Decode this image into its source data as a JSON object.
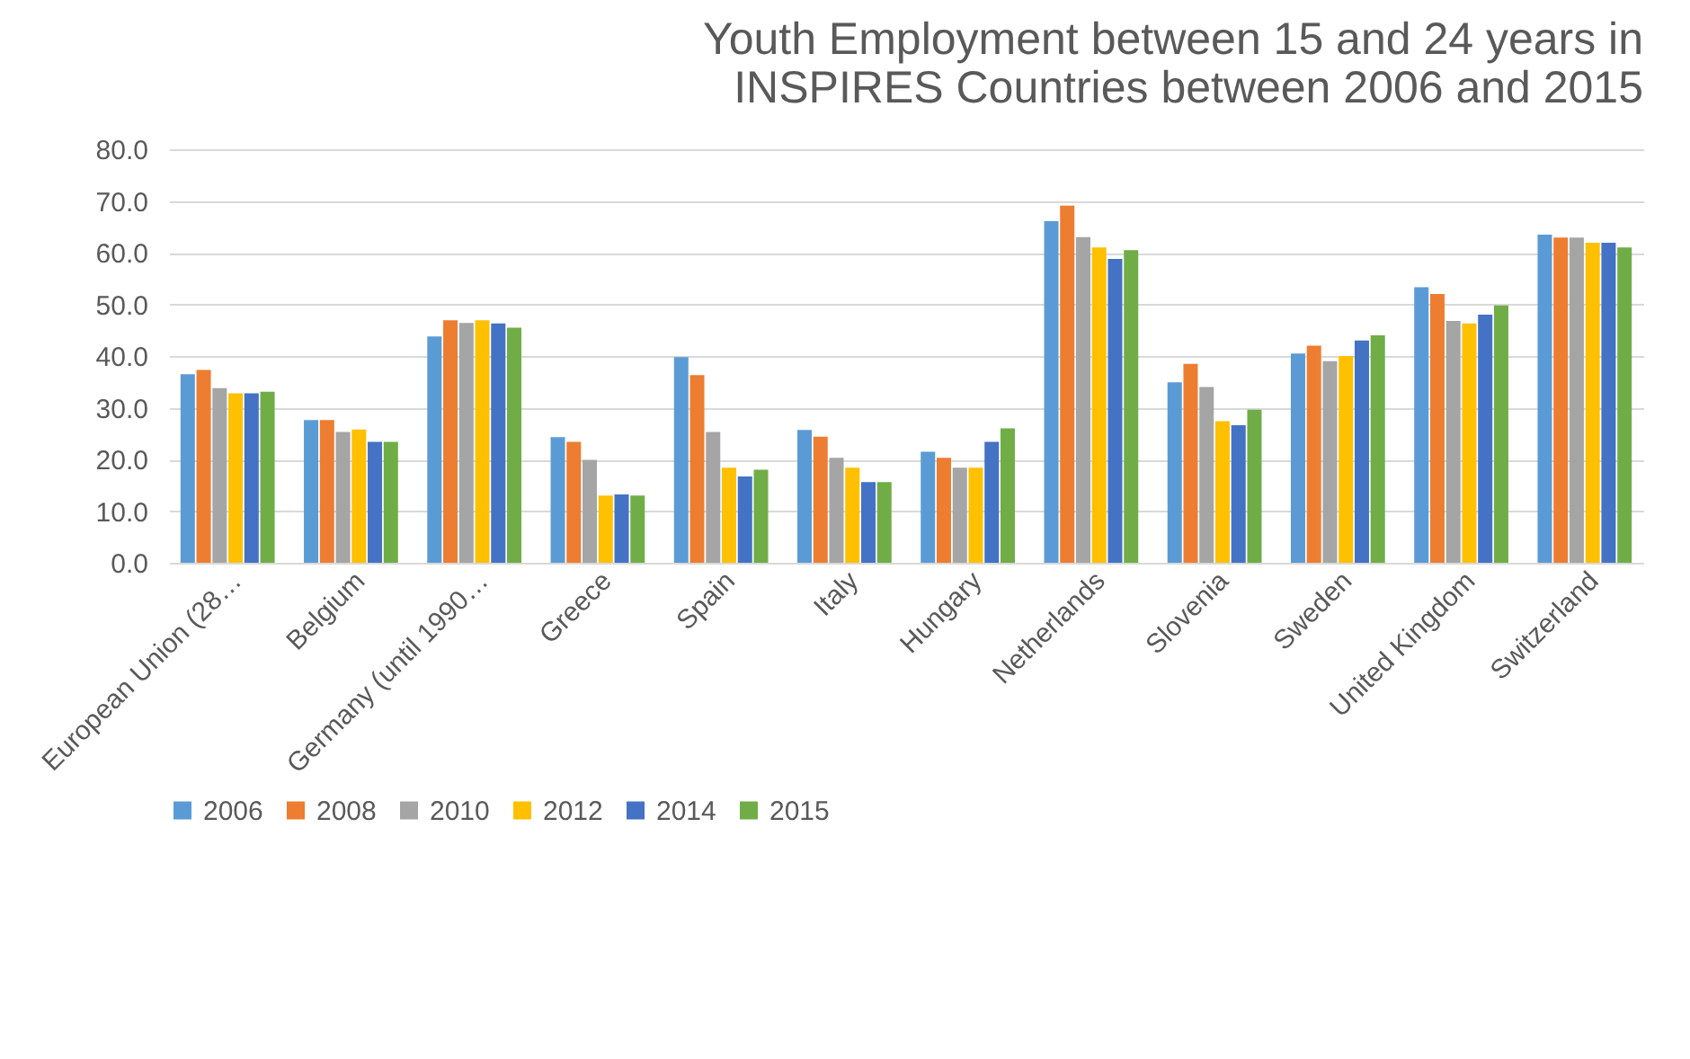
{
  "chart_data": {
    "type": "bar",
    "title": [
      "Youth Employment between 15 and 24 years in",
      "INSPIRES Countries between 2006 and 2015"
    ],
    "categories": [
      "European Union (28…",
      "Belgium",
      "Germany (until 1990…",
      "Greece",
      "Spain",
      "Italy",
      "Hungary",
      "Netherlands",
      "Slovenia",
      "Sweden",
      "United Kingdom",
      "Switzerland"
    ],
    "series": [
      {
        "name": "2006",
        "color": "#5b9bd5",
        "values": [
          36.5,
          27.6,
          43.8,
          24.3,
          39.8,
          25.7,
          21.5,
          66.1,
          34.9,
          40.5,
          53.3,
          63.5
        ]
      },
      {
        "name": "2008",
        "color": "#ed7d31",
        "values": [
          37.3,
          27.6,
          46.9,
          23.4,
          36.3,
          24.4,
          20.3,
          69.1,
          38.5,
          42.0,
          52.0,
          62.9
        ]
      },
      {
        "name": "2010",
        "color": "#a5a5a5",
        "values": [
          33.8,
          25.3,
          46.4,
          19.9,
          25.3,
          20.3,
          18.4,
          63.0,
          34.0,
          39.0,
          46.8,
          62.9
        ]
      },
      {
        "name": "2012",
        "color": "#ffc000",
        "values": [
          32.8,
          25.8,
          46.9,
          13.0,
          18.4,
          18.4,
          18.4,
          61.0,
          27.4,
          40.0,
          46.3,
          61.9
        ]
      },
      {
        "name": "2014",
        "color": "#4472c4",
        "values": [
          32.8,
          23.4,
          46.3,
          13.2,
          16.7,
          15.6,
          23.4,
          58.8,
          26.6,
          43.0,
          48.0,
          61.9
        ]
      },
      {
        "name": "2015",
        "color": "#70ad47",
        "values": [
          33.1,
          23.4,
          45.5,
          13.0,
          18.0,
          15.6,
          26.0,
          60.5,
          29.6,
          44.0,
          49.8,
          61.0
        ]
      }
    ],
    "ylim": [
      0,
      80
    ],
    "yticks": [
      {
        "value": 0,
        "label": "0.0"
      },
      {
        "value": 10,
        "label": "10.0"
      },
      {
        "value": 20,
        "label": "20.0"
      },
      {
        "value": 30,
        "label": "30.0"
      },
      {
        "value": 40,
        "label": "40.0"
      },
      {
        "value": 50,
        "label": "50.0"
      },
      {
        "value": 60,
        "label": "60.0"
      },
      {
        "value": 70,
        "label": "70.0"
      },
      {
        "value": 80,
        "label": "80.0"
      }
    ],
    "grid": "y",
    "legend": "bottom"
  }
}
